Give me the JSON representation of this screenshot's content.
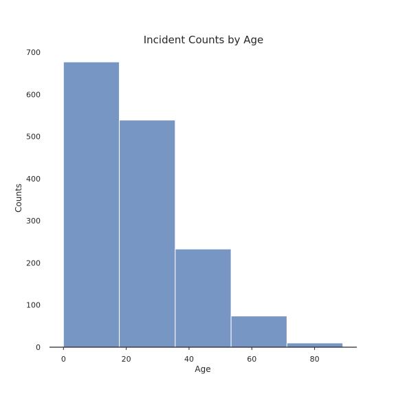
{
  "chart_data": {
    "type": "bar",
    "subtype": "histogram",
    "title": "Incident Counts by Age",
    "xlabel": "Age",
    "ylabel": "Counts",
    "bins": [
      {
        "start": 0,
        "end": 17.8,
        "count": 677
      },
      {
        "start": 17.8,
        "end": 35.6,
        "count": 539
      },
      {
        "start": 35.6,
        "end": 53.4,
        "count": 233
      },
      {
        "start": 53.4,
        "end": 71.2,
        "count": 74
      },
      {
        "start": 71.2,
        "end": 89.0,
        "count": 10
      }
    ],
    "xlim": [
      -4.45,
      93.45
    ],
    "ylim": [
      0,
      700
    ],
    "xticks": [
      0,
      20,
      40,
      60,
      80
    ],
    "yticks": [
      0,
      100,
      200,
      300,
      400,
      500,
      600,
      700
    ],
    "bar_color": "#7896c4",
    "grid": false
  }
}
